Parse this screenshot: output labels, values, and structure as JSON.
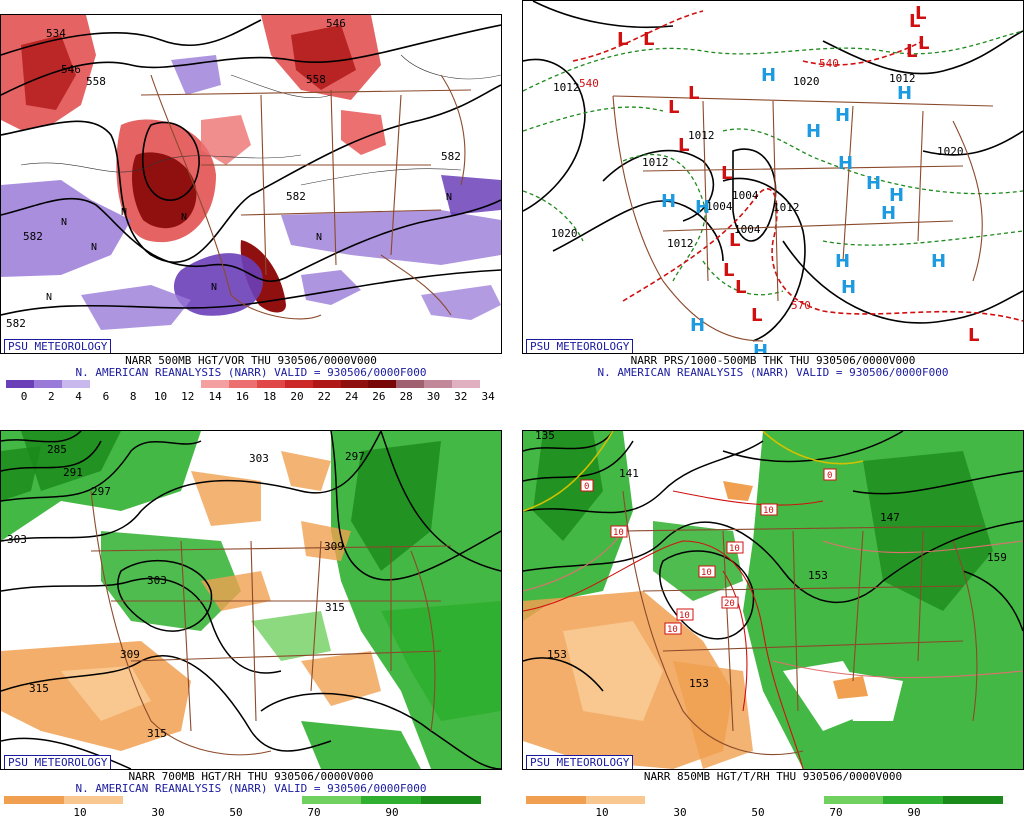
{
  "panels": {
    "p1": {
      "credit": "PSU METEOROLOGY",
      "title": "NARR 500MB HGT/VOR THU 930506/0000V000",
      "subtitle": "N. AMERICAN REANALYSIS (NARR) VALID = 930506/0000F000",
      "map_labels": [
        "534",
        "546",
        "558",
        "558",
        "582",
        "582",
        "582",
        "582",
        "546"
      ],
      "scale_ticks": [
        "0",
        "2",
        "4",
        "6",
        "8",
        "10",
        "12",
        "14",
        "16",
        "18",
        "20",
        "22",
        "24",
        "26",
        "28",
        "30",
        "32",
        "34"
      ],
      "scale_colors": [
        "#6a3fb8",
        "#9a7ad8",
        "#c8b8ee",
        "#ffffff",
        "#ffffff",
        "#ffffff",
        "#ffffff",
        "#f4a0a0",
        "#ec7070",
        "#e04848",
        "#cc2828",
        "#b01818",
        "#901010",
        "#780808",
        "#a06070",
        "#c08898",
        "#e0b0c0"
      ]
    },
    "p2": {
      "credit": "PSU METEOROLOGY",
      "title": "NARR PRS/1000-500MB THK THU 930506/0000V000",
      "subtitle": "N. AMERICAN REANALYSIS (NARR) VALID = 930506/0000F000",
      "map_labels": [
        "1012",
        "540",
        "1020",
        "540",
        "1012",
        "1012",
        "1020",
        "1012",
        "1004",
        "1004",
        "1012",
        "1012",
        "1020",
        "570",
        "1004"
      ],
      "highs": [
        "H",
        "H",
        "H",
        "H",
        "H",
        "H",
        "H",
        "H",
        "H",
        "H",
        "H",
        "H",
        "H",
        "H",
        "H"
      ],
      "lows": [
        "L",
        "L",
        "L",
        "L",
        "L",
        "L",
        "L",
        "L",
        "L",
        "L",
        "L",
        "L",
        "L",
        "L",
        "L"
      ]
    },
    "p3": {
      "credit": "PSU METEOROLOGY",
      "title": "NARR 700MB HGT/RH THU 930506/0000V000",
      "subtitle": "N. AMERICAN REANALYSIS (NARR) VALID = 930506/0000F000",
      "map_labels": [
        "285",
        "291",
        "297",
        "303",
        "303",
        "297",
        "309",
        "303",
        "315",
        "309",
        "315",
        "315"
      ],
      "scale_ticks": [
        "10",
        "30",
        "50",
        "70",
        "90"
      ]
    },
    "p4": {
      "credit": "PSU METEOROLOGY",
      "title": "NARR 850MB HGT/T/RH THU 930506/0000V000",
      "map_labels": [
        "135",
        "141",
        "147",
        "153",
        "153",
        "159",
        "153",
        "0",
        "0",
        "10",
        "10",
        "10",
        "10",
        "10",
        "10",
        "20"
      ],
      "scale_ticks": [
        "10",
        "30",
        "50",
        "70",
        "90"
      ]
    },
    "rh_colors": [
      "#f0a050",
      "#f8c890",
      "#ffffff",
      "#ffffff",
      "#ffffff",
      "#70d060",
      "#30b030",
      "#1a8a1a"
    ]
  }
}
